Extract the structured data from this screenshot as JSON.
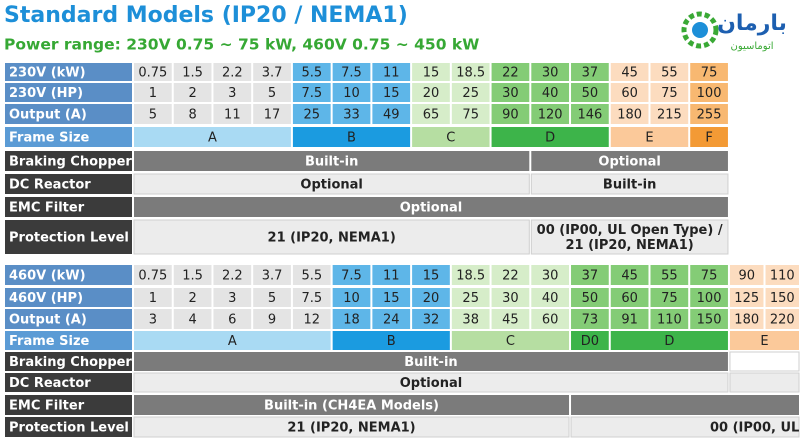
{
  "header": {
    "title": "Standard Models (IP20 / NEMA1)",
    "subtitle": "Power range: 230V 0.75 ~ 75 kW, 460V 0.75 ~ 450 kW",
    "logo_text": [
      "بارمان",
      "اتوماسیون"
    ]
  },
  "tables": [
    {
      "rows": [
        {
          "label": "230V (kW)",
          "cells": [
            "0.75",
            "1.5",
            "2.2",
            "3.7",
            "5.5",
            "7.5",
            "11",
            "15",
            "18.5",
            "22",
            "30",
            "37",
            "45",
            "55",
            "75"
          ]
        },
        {
          "label": "230V (HP)",
          "cells": [
            "1",
            "2",
            "3",
            "5",
            "7.5",
            "10",
            "15",
            "20",
            "25",
            "30",
            "40",
            "50",
            "60",
            "75",
            "100"
          ]
        },
        {
          "label": "Output (A)",
          "cells": [
            "5",
            "8",
            "11",
            "17",
            "25",
            "33",
            "49",
            "65",
            "75",
            "90",
            "120",
            "146",
            "180",
            "215",
            "255"
          ]
        }
      ],
      "frame_size": {
        "label": "Frame Size",
        "cells": [
          "A",
          "B",
          "C",
          "D",
          "E",
          "F"
        ]
      },
      "features": [
        {
          "label": "Braking Chopper",
          "cells": [
            "Built-in",
            "Optional"
          ]
        },
        {
          "label": "DC Reactor",
          "cells": [
            "Optional",
            "Built-in"
          ]
        },
        {
          "label": "EMC Filter",
          "cells": [
            "Optional"
          ]
        },
        {
          "label": "Protection Level",
          "cells": [
            "21 (IP20, NEMA1)",
            [
              "00 (IP00, UL Open Type) /",
              "21 (IP20, NEMA1)"
            ]
          ]
        }
      ]
    },
    {
      "rows": [
        {
          "label": "460V (kW)",
          "cells": [
            "0.75",
            "1.5",
            "2.2",
            "3.7",
            "5.5",
            "7.5",
            "11",
            "15",
            "18.5",
            "22",
            "30",
            "37",
            "45",
            "55",
            "75",
            "90",
            "110"
          ]
        },
        {
          "label": "460V (HP)",
          "cells": [
            "1",
            "2",
            "3",
            "5",
            "7.5",
            "10",
            "15",
            "20",
            "25",
            "30",
            "40",
            "50",
            "60",
            "75",
            "100",
            "125",
            "150"
          ]
        },
        {
          "label": "Output (A)",
          "cells": [
            "3",
            "4",
            "6",
            "9",
            "12",
            "18",
            "24",
            "32",
            "38",
            "45",
            "60",
            "73",
            "91",
            "110",
            "150",
            "180",
            "220"
          ]
        }
      ],
      "frame_size": {
        "label": "Frame Size",
        "cells": [
          "A",
          "B",
          "C",
          "D0",
          "D",
          "E"
        ]
      },
      "features": [
        {
          "label": "Braking Chopper",
          "cells": [
            "Built-in"
          ]
        },
        {
          "label": "DC Reactor",
          "cells": [
            "Optional"
          ]
        },
        {
          "label": "EMC Filter",
          "cells": [
            "Built-in (CH4EA Models)"
          ]
        },
        {
          "label": "Protection Level",
          "cells": [
            "21 (IP20, NEMA1)",
            "00 (IP00, UL"
          ]
        }
      ]
    }
  ]
}
